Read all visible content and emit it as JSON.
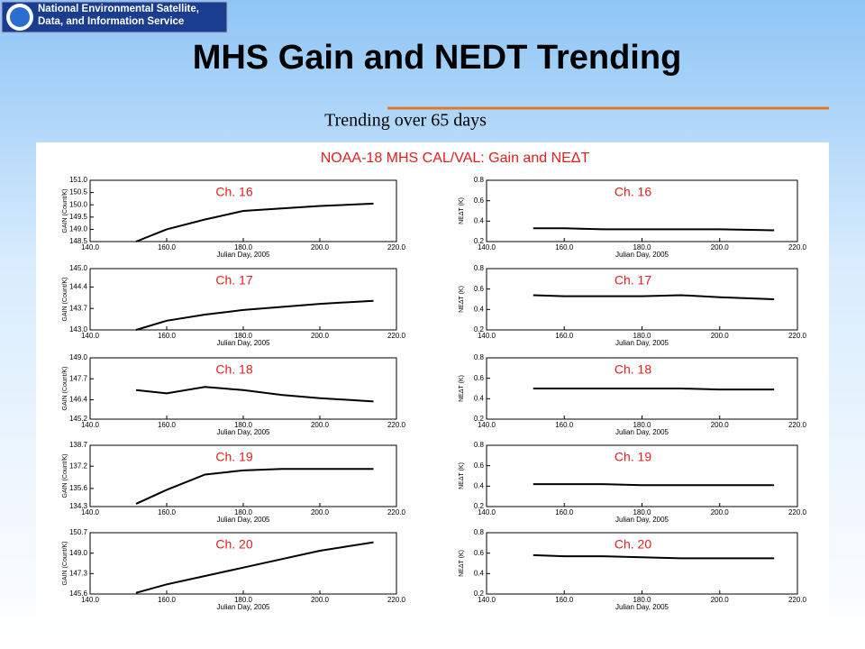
{
  "header": {
    "agency": "National Environmental Satellite, Data, and Information Service",
    "title": "MHS Gain and NEDT Trending",
    "subtitle": "Trending over 65 days"
  },
  "figure_title": "NOAA-18 MHS CAL/VAL: Gain and NEΔT",
  "chart_data": [
    {
      "type": "line",
      "title": "Ch. 16",
      "xlabel": "Julian Day, 2005",
      "ylabel": "GAIN (Count/K)",
      "x": [
        152,
        160,
        170,
        180,
        190,
        200,
        214
      ],
      "values": [
        148.5,
        149.0,
        149.4,
        149.75,
        149.85,
        149.95,
        150.05
      ],
      "color": "#000000",
      "xlim": [
        140,
        220
      ],
      "xticks": [
        {
          "value": 140,
          "label": "140.0"
        },
        {
          "value": 160,
          "label": "160.0"
        },
        {
          "value": 180,
          "label": "180.0"
        },
        {
          "value": 200,
          "label": "200.0"
        },
        {
          "value": 220,
          "label": "220.0"
        }
      ],
      "ylim": [
        148.5,
        151
      ],
      "yticks": [
        148.5,
        {
          "value": 149,
          "label": "149.0"
        },
        149.5,
        {
          "value": 150,
          "label": "150.0"
        },
        150.5,
        {
          "value": 151,
          "label": "151.0"
        }
      ]
    },
    {
      "type": "line",
      "title": "Ch. 16",
      "xlabel": "Julian Day, 2005",
      "ylabel": "NEΔT (K)",
      "x": [
        152,
        160,
        170,
        180,
        190,
        200,
        214
      ],
      "values": [
        0.33,
        0.33,
        0.32,
        0.32,
        0.32,
        0.32,
        0.31
      ],
      "color": "#000000",
      "xlim": [
        140,
        220
      ],
      "xticks": [
        {
          "value": 140,
          "label": "140.0"
        },
        {
          "value": 160,
          "label": "160.0"
        },
        {
          "value": 180,
          "label": "180.0"
        },
        {
          "value": 200,
          "label": "200.0"
        },
        {
          "value": 220,
          "label": "220.0"
        }
      ],
      "ylim": [
        0.2,
        0.8
      ],
      "yticks": [
        0.2,
        0.4,
        0.6,
        0.8
      ]
    },
    {
      "type": "line",
      "title": "Ch. 17",
      "xlabel": "Julian Day, 2005",
      "ylabel": "GAIN (Count/K)",
      "x": [
        152,
        160,
        170,
        180,
        190,
        200,
        214
      ],
      "values": [
        143.0,
        143.3,
        143.5,
        143.65,
        143.75,
        143.85,
        143.95
      ],
      "color": "#000000",
      "xlim": [
        140,
        220
      ],
      "xticks": [
        {
          "value": 140,
          "label": "140.0"
        },
        {
          "value": 160,
          "label": "160.0"
        },
        {
          "value": 180,
          "label": "180.0"
        },
        {
          "value": 200,
          "label": "200.0"
        },
        {
          "value": 220,
          "label": "220.0"
        }
      ],
      "ylim": [
        143,
        145
      ],
      "yticks": [
        {
          "value": 143,
          "label": "143.0"
        },
        143.7,
        144.4,
        {
          "value": 145,
          "label": "145.0"
        }
      ]
    },
    {
      "type": "line",
      "title": "Ch. 17",
      "xlabel": "Julian Day, 2005",
      "ylabel": "NEΔT (K)",
      "x": [
        152,
        160,
        170,
        180,
        190,
        200,
        214
      ],
      "values": [
        0.54,
        0.53,
        0.53,
        0.53,
        0.54,
        0.52,
        0.5
      ],
      "color": "#000000",
      "xlim": [
        140,
        220
      ],
      "xticks": [
        {
          "value": 140,
          "label": "140.0"
        },
        {
          "value": 160,
          "label": "160.0"
        },
        {
          "value": 180,
          "label": "180.0"
        },
        {
          "value": 200,
          "label": "200.0"
        },
        {
          "value": 220,
          "label": "220.0"
        }
      ],
      "ylim": [
        0.2,
        0.8
      ],
      "yticks": [
        0.2,
        0.4,
        0.6,
        0.8
      ]
    },
    {
      "type": "line",
      "title": "Ch. 18",
      "xlabel": "Julian Day, 2005",
      "ylabel": "GAIN (Count/K)",
      "x": [
        152,
        160,
        170,
        180,
        190,
        200,
        214
      ],
      "values": [
        147.0,
        146.8,
        147.2,
        147.0,
        146.7,
        146.5,
        146.3
      ],
      "color": "#000000",
      "xlim": [
        140,
        220
      ],
      "xticks": [
        {
          "value": 140,
          "label": "140.0"
        },
        {
          "value": 160,
          "label": "160.0"
        },
        {
          "value": 180,
          "label": "180.0"
        },
        {
          "value": 200,
          "label": "200.0"
        },
        {
          "value": 220,
          "label": "220.0"
        }
      ],
      "ylim": [
        145.2,
        149
      ],
      "yticks": [
        145.2,
        146.4,
        147.7,
        {
          "value": 149,
          "label": "149.0"
        }
      ]
    },
    {
      "type": "line",
      "title": "Ch. 18",
      "xlabel": "Julian Day, 2005",
      "ylabel": "NEΔT (K)",
      "x": [
        152,
        160,
        170,
        180,
        190,
        200,
        214
      ],
      "values": [
        0.5,
        0.5,
        0.5,
        0.5,
        0.5,
        0.49,
        0.49
      ],
      "color": "#000000",
      "xlim": [
        140,
        220
      ],
      "xticks": [
        {
          "value": 140,
          "label": "140.0"
        },
        {
          "value": 160,
          "label": "160.0"
        },
        {
          "value": 180,
          "label": "180.0"
        },
        {
          "value": 200,
          "label": "200.0"
        },
        {
          "value": 220,
          "label": "220.0"
        }
      ],
      "ylim": [
        0.2,
        0.8
      ],
      "yticks": [
        0.2,
        0.4,
        0.6,
        0.8
      ]
    },
    {
      "type": "line",
      "title": "Ch. 19",
      "xlabel": "Julian Day, 2005",
      "ylabel": "GAIN (Count/K)",
      "x": [
        152,
        160,
        170,
        180,
        190,
        200,
        214
      ],
      "values": [
        134.5,
        135.5,
        136.6,
        136.9,
        137.0,
        137.0,
        137.0
      ],
      "color": "#000000",
      "xlim": [
        140,
        220
      ],
      "xticks": [
        {
          "value": 140,
          "label": "140.0"
        },
        {
          "value": 160,
          "label": "160.0"
        },
        {
          "value": 180,
          "label": "180.0"
        },
        {
          "value": 200,
          "label": "200.0"
        },
        {
          "value": 220,
          "label": "220.0"
        }
      ],
      "ylim": [
        134.3,
        138.7
      ],
      "yticks": [
        134.3,
        135.6,
        137.2,
        138.7
      ]
    },
    {
      "type": "line",
      "title": "Ch. 19",
      "xlabel": "Julian Day, 2005",
      "ylabel": "NEΔT (K)",
      "x": [
        152,
        160,
        170,
        180,
        190,
        200,
        214
      ],
      "values": [
        0.42,
        0.42,
        0.42,
        0.41,
        0.41,
        0.41,
        0.41
      ],
      "color": "#000000",
      "xlim": [
        140,
        220
      ],
      "xticks": [
        {
          "value": 140,
          "label": "140.0"
        },
        {
          "value": 160,
          "label": "160.0"
        },
        {
          "value": 180,
          "label": "180.0"
        },
        {
          "value": 200,
          "label": "200.0"
        },
        {
          "value": 220,
          "label": "220.0"
        }
      ],
      "ylim": [
        0.2,
        0.8
      ],
      "yticks": [
        0.2,
        0.4,
        0.6,
        0.8
      ]
    },
    {
      "type": "line",
      "title": "Ch. 20",
      "xlabel": "Julian Day, 2005",
      "ylabel": "GAIN (Count/K)",
      "x": [
        152,
        160,
        170,
        180,
        190,
        200,
        214
      ],
      "values": [
        145.7,
        146.4,
        147.1,
        147.8,
        148.5,
        149.2,
        149.9
      ],
      "color": "#000000",
      "xlim": [
        140,
        220
      ],
      "xticks": [
        {
          "value": 140,
          "label": "140.0"
        },
        {
          "value": 160,
          "label": "160.0"
        },
        {
          "value": 180,
          "label": "180.0"
        },
        {
          "value": 200,
          "label": "200.0"
        },
        {
          "value": 220,
          "label": "220.0"
        }
      ],
      "ylim": [
        145.6,
        150.7
      ],
      "yticks": [
        145.6,
        147.3,
        {
          "value": 149,
          "label": "149.0"
        },
        150.7
      ]
    },
    {
      "type": "line",
      "title": "Ch. 20",
      "xlabel": "Julian Day, 2005",
      "ylabel": "NEΔT (K)",
      "x": [
        152,
        160,
        170,
        180,
        190,
        200,
        214
      ],
      "values": [
        0.58,
        0.57,
        0.57,
        0.56,
        0.55,
        0.55,
        0.55
      ],
      "color": "#000000",
      "xlim": [
        140,
        220
      ],
      "xticks": [
        {
          "value": 140,
          "label": "140.0"
        },
        {
          "value": 160,
          "label": "160.0"
        },
        {
          "value": 180,
          "label": "180.0"
        },
        {
          "value": 200,
          "label": "200.0"
        },
        {
          "value": 220,
          "label": "220.0"
        }
      ],
      "ylim": [
        0.2,
        0.8
      ],
      "yticks": [
        0.2,
        0.4,
        0.6,
        0.8
      ]
    }
  ]
}
